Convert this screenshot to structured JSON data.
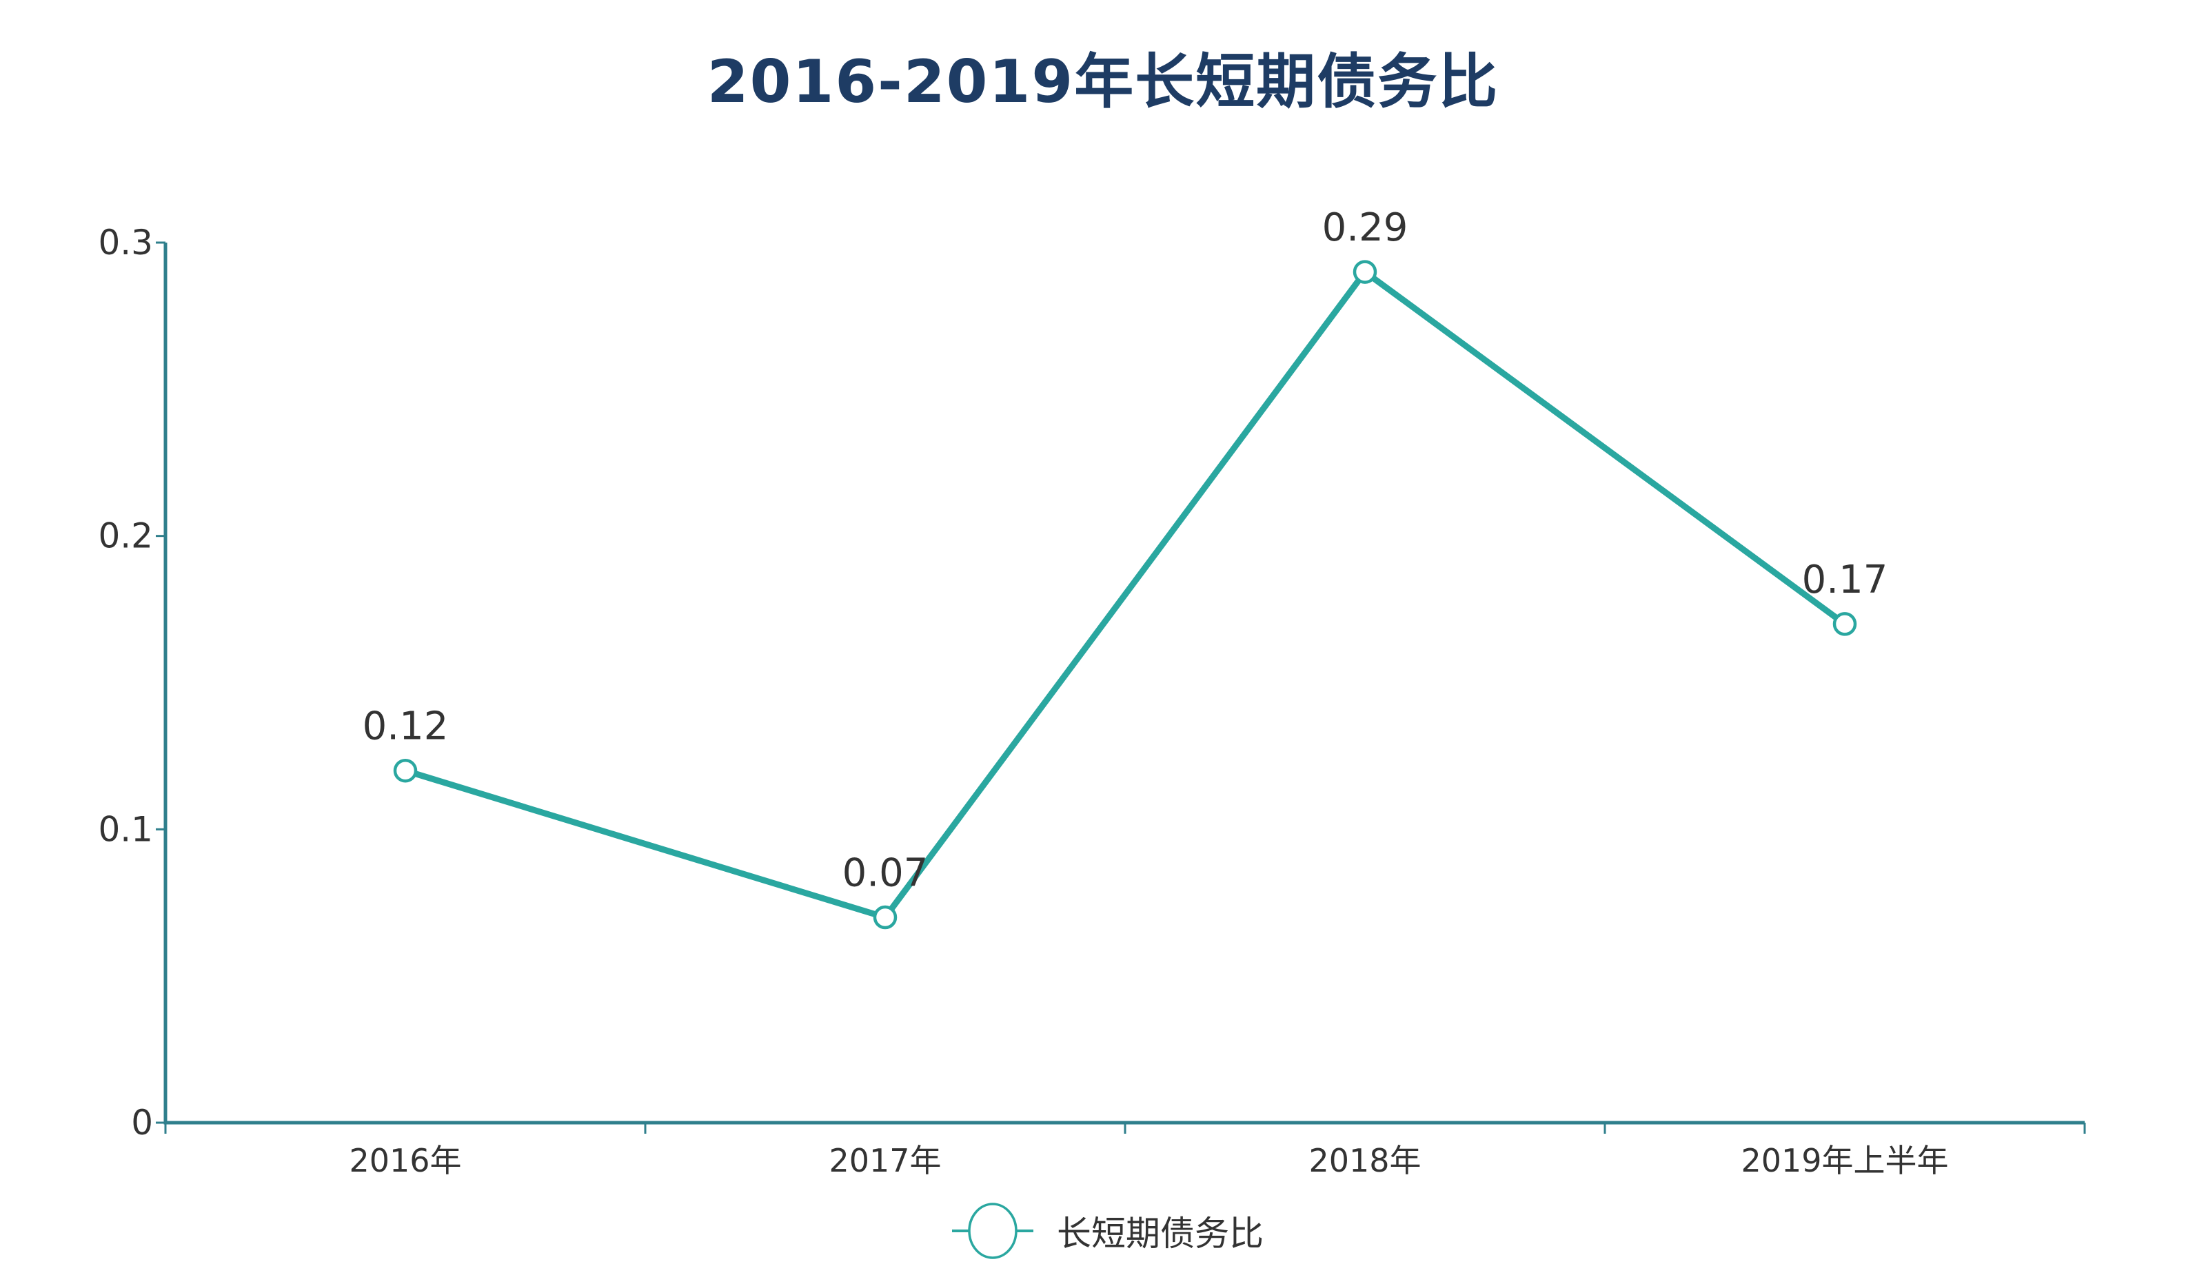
{
  "title": {
    "text": "2016-2019年长短期债务比"
  },
  "legend": {
    "label": "长短期债务比"
  },
  "colors": {
    "series": "#2aa7a0",
    "axis": "#2f7f8c",
    "text": "#333333",
    "title": "#1e3c64",
    "marker_fill": "#ffffff"
  },
  "chart_data": {
    "type": "line",
    "title": "2016-2019年长短期债务比",
    "categories": [
      "2016年",
      "2017年",
      "2018年",
      "2019年上半年"
    ],
    "series": [
      {
        "name": "长短期债务比",
        "values": [
          0.12,
          0.07,
          0.29,
          0.17
        ]
      }
    ],
    "data_labels": [
      "0.12",
      "0.07",
      "0.29",
      "0.17"
    ],
    "xlabel": "",
    "ylabel": "",
    "ylim": [
      0,
      0.3
    ],
    "ytick_step": 0.1,
    "ytick_labels": [
      "0",
      "0.1",
      "0.2",
      "0.3"
    ],
    "grid": false,
    "legend_position": "bottom",
    "marker": "open-circle",
    "line_width": 9,
    "marker_radius": 15
  }
}
